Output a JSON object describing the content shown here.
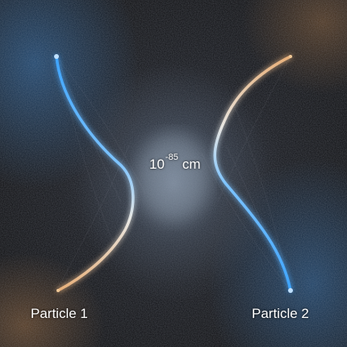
{
  "labels": {
    "particle_1": "Particle 1",
    "particle_2": "Particle 2"
  },
  "scale": {
    "base": "10",
    "exponent": "-85",
    "unit": "cm"
  },
  "colors": {
    "blue_arc": "#3da4ff",
    "warm_arc": "#e8b07a",
    "background": "#0c0c0e"
  }
}
